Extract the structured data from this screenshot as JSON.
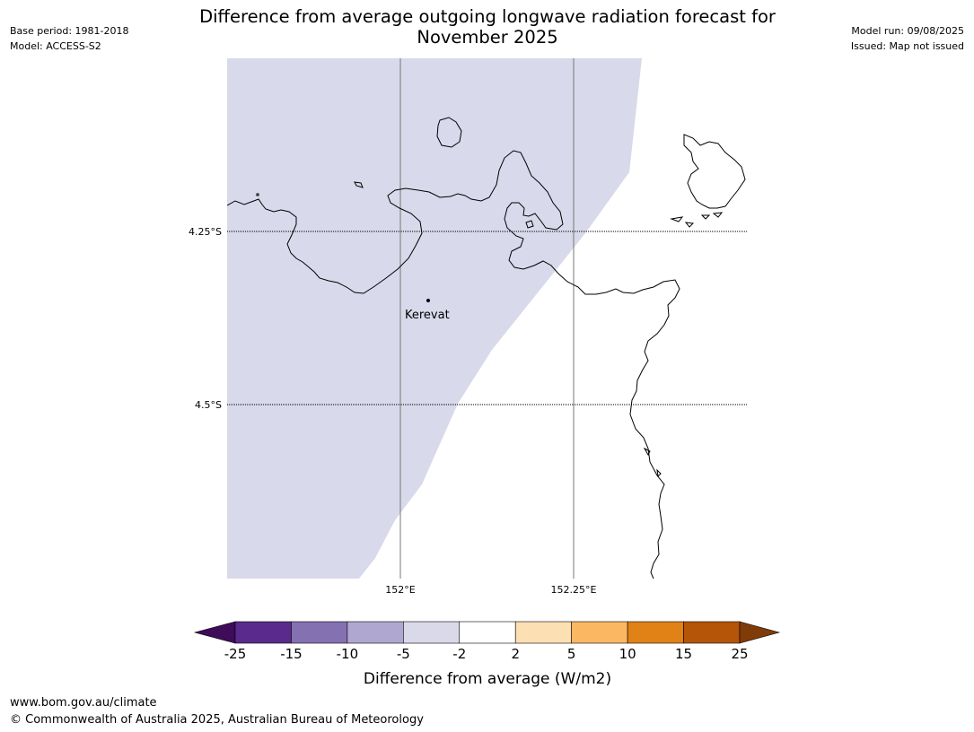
{
  "title_line1": "Difference from average outgoing longwave radiation forecast for",
  "title_line2": "November 2025",
  "meta_left": [
    "Base period: 1981-2018",
    "Model: ACCESS-S2"
  ],
  "meta_right": [
    "Model run: 09/08/2025",
    "Issued: Map not issued"
  ],
  "map": {
    "lat_labels": [
      "4.25°S",
      "4.5°S"
    ],
    "lon_labels": [
      "152°E",
      "152.25°E"
    ],
    "place": "Kerevat",
    "shaded_category": "-5 to -2"
  },
  "colorbar": {
    "ticks": [
      "-25",
      "-15",
      "-10",
      "-5",
      "-2",
      "2",
      "5",
      "10",
      "15",
      "25"
    ],
    "colors": [
      "#3f0c5a",
      "#5a2a8c",
      "#8471b1",
      "#b0a7d1",
      "#d9d9ea",
      "#ffffff",
      "#fddfb4",
      "#fbb761",
      "#e08216",
      "#b45507",
      "#7f3b08"
    ],
    "label": "Difference from average (W/m2)"
  },
  "footer": [
    "www.bom.gov.au/climate",
    "© Commonwealth of Australia 2025, Australian Bureau of Meteorology"
  ]
}
